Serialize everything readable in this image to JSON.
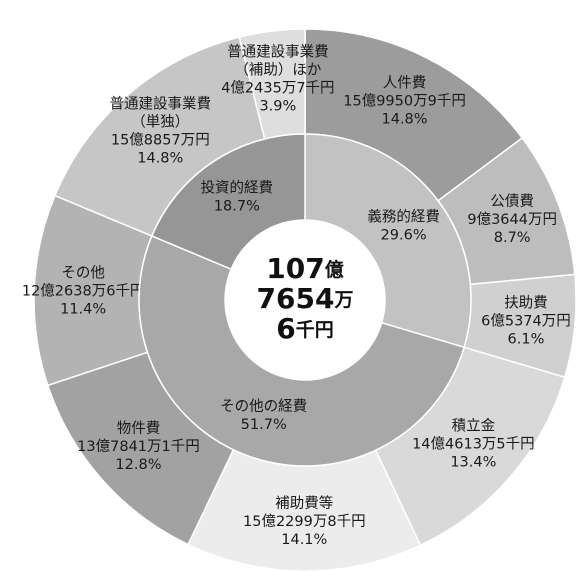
{
  "chart_data": {
    "type": "sunburst",
    "center_label": [
      [
        "107",
        "億"
      ],
      [
        "7654",
        "万"
      ],
      [
        "6",
        "千円"
      ]
    ],
    "inner": {
      "categories": [
        [
          "義務的経費"
        ],
        [
          "その他の経費"
        ],
        [
          "投資的経費"
        ]
      ],
      "values": [
        29.6,
        51.7,
        18.7
      ],
      "value_labels": [
        "29.6%",
        "51.7%",
        "18.7%"
      ],
      "colors": [
        "#c2c2c2",
        "#a8a8a8",
        "#969696"
      ]
    },
    "outer": {
      "categories": [
        [
          "人件費"
        ],
        [
          "公債費"
        ],
        [
          "扶助費"
        ],
        [
          "積立金"
        ],
        [
          "補助費等"
        ],
        [
          "物件費"
        ],
        [
          "その他"
        ],
        [
          "普通建設事業費",
          "（単独）"
        ],
        [
          "普通建設事業費",
          "（補助）ほか"
        ]
      ],
      "amounts": [
        "15億9950万9千円",
        "9億3644万円",
        "6億5374万円",
        "14億4613万5千円",
        "15億2299万8千円",
        "13億7841万1千円",
        "12億2638万6千円",
        "15億8857万円",
        "4億2435万7千円"
      ],
      "values": [
        14.8,
        8.7,
        6.1,
        13.4,
        14.1,
        12.8,
        11.4,
        14.8,
        3.9
      ],
      "value_labels": [
        "14.8%",
        "8.7%",
        "6.1%",
        "13.4%",
        "14.1%",
        "12.8%",
        "11.4%",
        "14.8%",
        "3.9%"
      ],
      "colors": [
        "#9c9c9c",
        "#bdbdbd",
        "#d0d0d0",
        "#d9d9d9",
        "#ececec",
        "#a2a2a2",
        "#b3b3b3",
        "#c6c6c6",
        "#dedede"
      ]
    }
  }
}
